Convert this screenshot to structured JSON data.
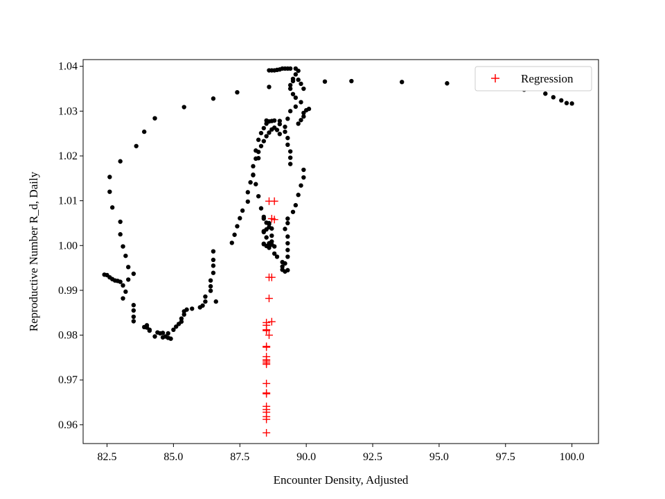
{
  "chart_data": {
    "type": "scatter",
    "title": "",
    "xlabel": "Encounter Density, Adjusted",
    "ylabel": "Reproductive Number R_d, Daily",
    "xlim": [
      81.6,
      101.0
    ],
    "ylim": [
      0.9558,
      1.0415
    ],
    "xticks": [
      82.5,
      85.0,
      87.5,
      90.0,
      92.5,
      95.0,
      97.5,
      100.0
    ],
    "xtick_labels": [
      "82.5",
      "85.0",
      "87.5",
      "90.0",
      "92.5",
      "95.0",
      "97.5",
      "100.0"
    ],
    "yticks": [
      0.96,
      0.97,
      0.98,
      0.99,
      1.0,
      1.01,
      1.02,
      1.03,
      1.04
    ],
    "ytick_labels": [
      "0.96",
      "0.97",
      "0.98",
      "0.99",
      "1.00",
      "1.01",
      "1.02",
      "1.03",
      "1.04"
    ],
    "grid": false,
    "legend": {
      "placement": "top-right",
      "entries": [
        "Regression"
      ]
    },
    "series": [
      {
        "marker": "dot",
        "color": "#000000",
        "points": [
          [
            100.0,
            1.0317
          ],
          [
            99.8,
            1.0318
          ],
          [
            99.6,
            1.0324
          ],
          [
            99.3,
            1.0331
          ],
          [
            99.0,
            1.0339
          ],
          [
            98.2,
            1.0348
          ],
          [
            97.0,
            1.0357
          ],
          [
            95.3,
            1.0362
          ],
          [
            93.6,
            1.0365
          ],
          [
            91.7,
            1.0367
          ],
          [
            90.7,
            1.0366
          ],
          [
            88.6,
            1.0354
          ],
          [
            87.4,
            1.0342
          ],
          [
            86.5,
            1.0328
          ],
          [
            85.4,
            1.0309
          ],
          [
            84.3,
            1.0284
          ],
          [
            83.9,
            1.0254
          ],
          [
            83.6,
            1.0222
          ],
          [
            83.0,
            1.0188
          ],
          [
            82.6,
            1.0153
          ],
          [
            82.6,
            1.012
          ],
          [
            82.7,
            1.0085
          ],
          [
            83.0,
            1.0053
          ],
          [
            83.0,
            1.0025
          ],
          [
            83.1,
            0.9998
          ],
          [
            83.2,
            0.9977
          ],
          [
            83.3,
            0.9952
          ],
          [
            83.5,
            0.9937
          ],
          [
            82.4,
            0.9935
          ],
          [
            82.5,
            0.9934
          ],
          [
            82.6,
            0.9929
          ],
          [
            82.7,
            0.9925
          ],
          [
            82.8,
            0.9922
          ],
          [
            82.9,
            0.9921
          ],
          [
            83.0,
            0.9919
          ],
          [
            83.1,
            0.9911
          ],
          [
            83.2,
            0.9897
          ],
          [
            83.1,
            0.9882
          ],
          [
            83.3,
            0.9924
          ],
          [
            83.5,
            0.9867
          ],
          [
            83.5,
            0.9855
          ],
          [
            83.5,
            0.9841
          ],
          [
            83.5,
            0.9831
          ],
          [
            83.9,
            0.9818
          ],
          [
            84.0,
            0.9817
          ],
          [
            84.0,
            0.9822
          ],
          [
            84.1,
            0.9812
          ],
          [
            84.1,
            0.981
          ],
          [
            84.3,
            0.9797
          ],
          [
            84.4,
            0.9806
          ],
          [
            84.5,
            0.9804
          ],
          [
            84.6,
            0.9795
          ],
          [
            84.6,
            0.9805
          ],
          [
            84.7,
            0.9797
          ],
          [
            84.8,
            0.9794
          ],
          [
            84.8,
            0.9804
          ],
          [
            84.9,
            0.9792
          ],
          [
            85.0,
            0.9812
          ],
          [
            85.1,
            0.9819
          ],
          [
            85.2,
            0.9825
          ],
          [
            85.3,
            0.983
          ],
          [
            85.3,
            0.9837
          ],
          [
            85.4,
            0.9846
          ],
          [
            85.4,
            0.9853
          ],
          [
            85.5,
            0.9857
          ],
          [
            85.7,
            0.9859
          ],
          [
            86.0,
            0.9862
          ],
          [
            86.1,
            0.9866
          ],
          [
            86.2,
            0.9875
          ],
          [
            86.2,
            0.9886
          ],
          [
            86.4,
            0.9899
          ],
          [
            86.4,
            0.9909
          ],
          [
            86.4,
            0.9922
          ],
          [
            86.5,
            0.9939
          ],
          [
            86.5,
            0.9955
          ],
          [
            86.5,
            0.9968
          ],
          [
            86.5,
            0.9987
          ],
          [
            86.6,
            0.9875
          ],
          [
            87.2,
            1.0006
          ],
          [
            87.3,
            1.0024
          ],
          [
            87.4,
            1.0043
          ],
          [
            87.5,
            1.0061
          ],
          [
            87.6,
            1.0078
          ],
          [
            87.8,
            1.0098
          ],
          [
            87.8,
            1.0119
          ],
          [
            87.9,
            1.0141
          ],
          [
            88.0,
            1.0158
          ],
          [
            88.0,
            1.0177
          ],
          [
            88.1,
            1.0194
          ],
          [
            88.2,
            1.0209
          ],
          [
            88.3,
            1.0222
          ],
          [
            88.4,
            1.0233
          ],
          [
            88.5,
            1.0244
          ],
          [
            88.6,
            1.0252
          ],
          [
            88.7,
            1.0259
          ],
          [
            88.8,
            1.0263
          ],
          [
            88.9,
            1.0258
          ],
          [
            89.0,
            1.0249
          ],
          [
            89.0,
            1.0271
          ],
          [
            89.0,
            1.0278
          ],
          [
            88.8,
            1.0279
          ],
          [
            88.7,
            1.0278
          ],
          [
            88.6,
            1.0277
          ],
          [
            88.5,
            1.0279
          ],
          [
            88.5,
            1.0272
          ],
          [
            88.4,
            1.0262
          ],
          [
            88.3,
            1.0251
          ],
          [
            88.2,
            1.0236
          ],
          [
            88.1,
            1.0212
          ],
          [
            88.2,
            1.0195
          ],
          [
            88.0,
            1.0157
          ],
          [
            88.1,
            1.0137
          ],
          [
            88.2,
            1.011
          ],
          [
            88.3,
            1.0083
          ],
          [
            88.4,
            1.0064
          ],
          [
            88.6,
            1.005
          ],
          [
            88.7,
            1.0038
          ],
          [
            88.7,
            1.0022
          ],
          [
            88.7,
            1.0009
          ],
          [
            88.6,
            1.0
          ],
          [
            88.6,
            0.9997
          ],
          [
            88.4,
            1.0004
          ],
          [
            88.5,
            0.9999
          ],
          [
            88.7,
            1.0002
          ],
          [
            88.8,
            0.9998
          ],
          [
            88.8,
            0.9982
          ],
          [
            88.9,
            0.9975
          ],
          [
            89.1,
            0.9963
          ],
          [
            89.1,
            0.9953
          ],
          [
            89.1,
            0.9946
          ],
          [
            89.2,
            0.9942
          ],
          [
            89.3,
            0.9945
          ],
          [
            89.2,
            0.996
          ],
          [
            89.3,
            0.9975
          ],
          [
            89.3,
            0.999
          ],
          [
            89.3,
            1.0005
          ],
          [
            89.3,
            1.002
          ],
          [
            89.2,
            1.0037
          ],
          [
            89.3,
            1.005
          ],
          [
            89.3,
            1.006
          ],
          [
            89.5,
            1.0075
          ],
          [
            89.6,
            1.009
          ],
          [
            89.7,
            1.0113
          ],
          [
            89.8,
            1.0134
          ],
          [
            89.9,
            1.0152
          ],
          [
            89.9,
            1.0169
          ],
          [
            89.2,
            1.0254
          ],
          [
            89.3,
            1.024
          ],
          [
            89.3,
            1.0225
          ],
          [
            89.4,
            1.021
          ],
          [
            89.4,
            1.0196
          ],
          [
            89.4,
            1.0182
          ],
          [
            89.2,
            1.0265
          ],
          [
            89.3,
            1.0283
          ],
          [
            89.4,
            1.03
          ],
          [
            89.6,
            1.031
          ],
          [
            89.8,
            1.032
          ],
          [
            90.0,
            1.0302
          ],
          [
            90.1,
            1.0305
          ],
          [
            89.9,
            1.0296
          ],
          [
            89.9,
            1.0288
          ],
          [
            89.8,
            1.028
          ],
          [
            89.7,
            1.0272
          ],
          [
            89.6,
            1.033
          ],
          [
            89.5,
            1.0338
          ],
          [
            89.4,
            1.035
          ],
          [
            89.4,
            1.0358
          ],
          [
            89.5,
            1.0367
          ],
          [
            89.5,
            1.0372
          ],
          [
            89.6,
            1.0382
          ],
          [
            89.7,
            1.039
          ],
          [
            89.6,
            1.0395
          ],
          [
            89.4,
            1.0395
          ],
          [
            89.3,
            1.0395
          ],
          [
            89.2,
            1.0395
          ],
          [
            89.1,
            1.0395
          ],
          [
            89.0,
            1.0393
          ],
          [
            88.9,
            1.0392
          ],
          [
            88.8,
            1.0391
          ],
          [
            88.7,
            1.0391
          ],
          [
            88.6,
            1.0391
          ],
          [
            89.7,
            1.037
          ],
          [
            89.8,
            1.0361
          ],
          [
            89.9,
            1.035
          ],
          [
            88.4,
            1.006
          ],
          [
            88.5,
            1.0051
          ],
          [
            88.6,
            1.0048
          ],
          [
            88.6,
            1.0041
          ],
          [
            88.5,
            1.0036
          ],
          [
            88.4,
            1.003
          ],
          [
            88.4,
            1.0032
          ],
          [
            88.5,
            1.0018
          ],
          [
            88.6,
            1.0005
          ],
          [
            88.6,
            0.9995
          ],
          [
            88.4,
            1.0003
          ]
        ]
      },
      {
        "name": "Regression",
        "marker": "plus",
        "color": "#ff0000",
        "points": [
          [
            88.8,
            1.0099
          ],
          [
            88.6,
            1.0099
          ],
          [
            88.8,
            1.0058
          ],
          [
            88.7,
            1.006
          ],
          [
            88.6,
            0.9929
          ],
          [
            88.7,
            0.9929
          ],
          [
            88.6,
            0.9882
          ],
          [
            88.7,
            0.983
          ],
          [
            88.5,
            0.9828
          ],
          [
            88.5,
            0.9822
          ],
          [
            88.5,
            0.9812
          ],
          [
            88.5,
            0.981
          ],
          [
            88.6,
            0.98
          ],
          [
            88.5,
            0.9775
          ],
          [
            88.5,
            0.9773
          ],
          [
            88.5,
            0.9752
          ],
          [
            88.5,
            0.9745
          ],
          [
            88.5,
            0.9742
          ],
          [
            88.5,
            0.9738
          ],
          [
            88.5,
            0.9735
          ],
          [
            88.5,
            0.9692
          ],
          [
            88.5,
            0.9671
          ],
          [
            88.5,
            0.9669
          ],
          [
            88.5,
            0.9641
          ],
          [
            88.5,
            0.9634
          ],
          [
            88.5,
            0.9628
          ],
          [
            88.5,
            0.9618
          ],
          [
            88.5,
            0.9612
          ],
          [
            88.5,
            0.9582
          ]
        ]
      }
    ]
  }
}
